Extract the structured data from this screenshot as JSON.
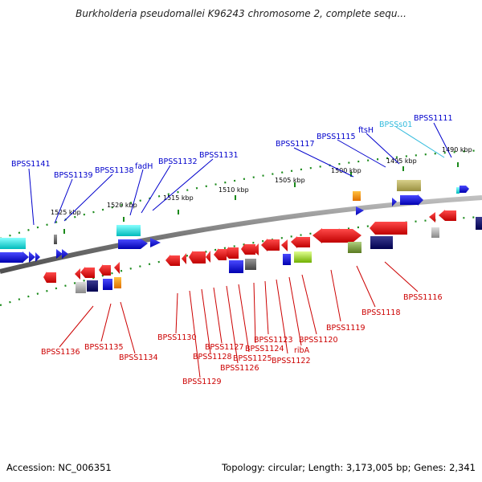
{
  "title": "Burkholderia pseudomallei K96243 chromosome 2, complete sequ...",
  "footer": {
    "accession": "Accession: NC_006351",
    "summary": "Topology: circular; Length: 3,173,005 bp; Genes: 2,341"
  },
  "colors": {
    "forward_label": "#0000cc",
    "reverse_label": "#cc0000",
    "rna_label": "#33bbdd",
    "backbone": "#7a7a7a",
    "tick": "#1a8a1a"
  },
  "ruler": [
    {
      "label": "1490 kbp"
    },
    {
      "label": "1495 kbp"
    },
    {
      "label": "1500 kbp"
    },
    {
      "label": "1505 kbp"
    },
    {
      "label": "1510 kbp"
    },
    {
      "label": "1515 kbp"
    },
    {
      "label": "1520 kbp"
    },
    {
      "label": "1525 kbp"
    }
  ],
  "forward_labels": [
    {
      "name": "BPSS1111",
      "type": "gene"
    },
    {
      "name": "BPSSs01",
      "type": "rna"
    },
    {
      "name": "ftsH",
      "type": "gene"
    },
    {
      "name": "BPSS1115",
      "type": "gene"
    },
    {
      "name": "BPSS1117",
      "type": "gene"
    },
    {
      "name": "BPSS1131",
      "type": "gene"
    },
    {
      "name": "BPSS1132",
      "type": "gene"
    },
    {
      "name": "fadH",
      "type": "gene"
    },
    {
      "name": "BPSS1138",
      "type": "gene"
    },
    {
      "name": "BPSS1139",
      "type": "gene"
    },
    {
      "name": "BPSS1141",
      "type": "gene"
    }
  ],
  "reverse_labels": [
    {
      "name": "BPSS1116"
    },
    {
      "name": "BPSS1118"
    },
    {
      "name": "BPSS1119"
    },
    {
      "name": "BPSS1120"
    },
    {
      "name": "ribA"
    },
    {
      "name": "BPSS1122"
    },
    {
      "name": "BPSS1123"
    },
    {
      "name": "BPSS1124"
    },
    {
      "name": "BPSS1125"
    },
    {
      "name": "BPSS1126"
    },
    {
      "name": "BPSS1127"
    },
    {
      "name": "BPSS1128"
    },
    {
      "name": "BPSS1129"
    },
    {
      "name": "BPSS1130"
    },
    {
      "name": "BPSS1134"
    },
    {
      "name": "BPSS1135"
    },
    {
      "name": "BPSS1136"
    }
  ]
}
